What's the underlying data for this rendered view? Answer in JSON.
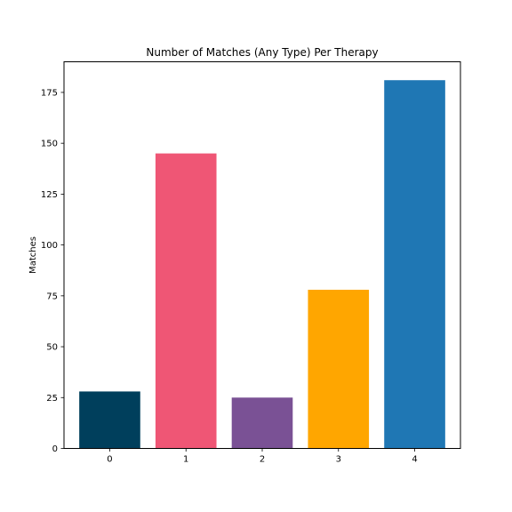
{
  "chart_data": {
    "type": "bar",
    "title": "Number of Matches (Any Type) Per Therapy",
    "xlabel": "",
    "ylabel": "Matches",
    "categories": [
      "0",
      "1",
      "2",
      "3",
      "4"
    ],
    "values": [
      28,
      145,
      25,
      78,
      181
    ],
    "colors": [
      "#003f5c",
      "#ef5675",
      "#7a5195",
      "#ffa600",
      "#1f77b4"
    ],
    "ylim": [
      0,
      190.05
    ],
    "yticks": [
      0,
      25,
      50,
      75,
      100,
      125,
      150,
      175
    ],
    "grid": false,
    "legend": "none"
  }
}
